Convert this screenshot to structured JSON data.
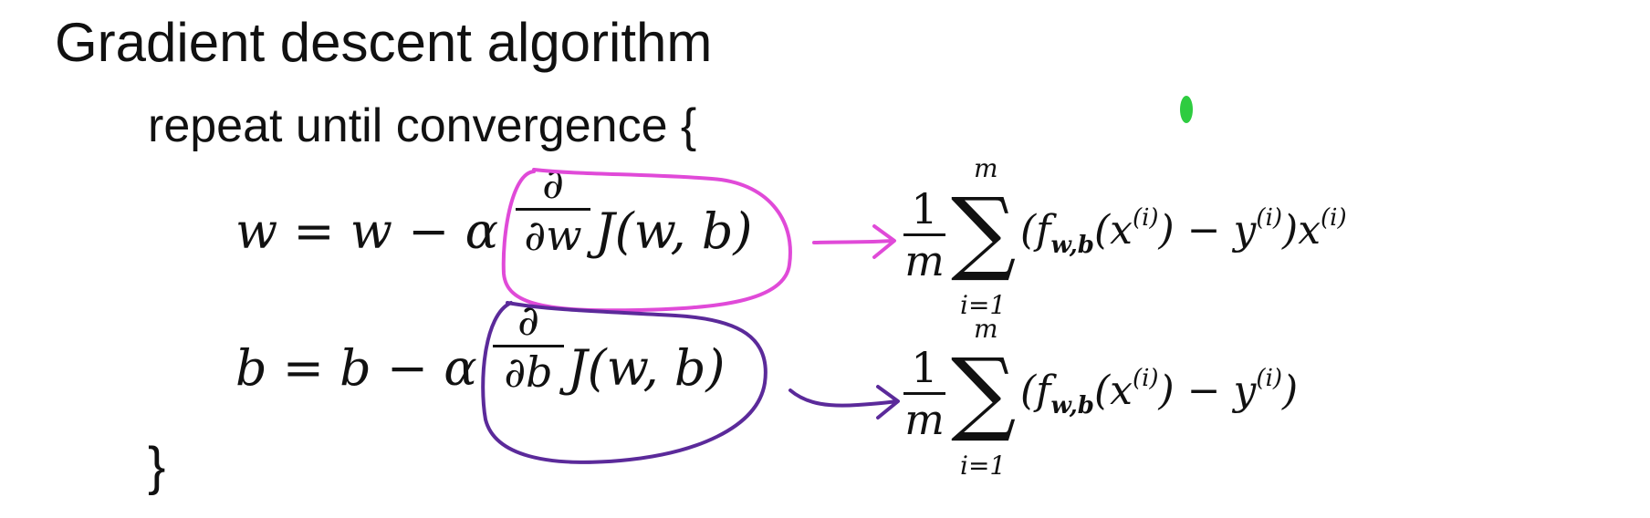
{
  "slide": {
    "title": "Gradient descent algorithm",
    "repeat_label": "repeat until convergence {",
    "close_brace": "}"
  },
  "equation_w": {
    "lhs": "w = w − α",
    "deriv_num": "∂",
    "deriv_den": "∂w",
    "cost": "J(w, b)"
  },
  "equation_b": {
    "lhs": "b = b − α",
    "deriv_num": "∂",
    "deriv_den": "∂b",
    "cost": "J(w, b)"
  },
  "derivative_w": {
    "frac_num": "1",
    "frac_den": "m",
    "sum_upper": "m",
    "sum_lower": "i=1",
    "f": "(f",
    "f_sub": "w,b",
    "expr_a": "(x",
    "sup_i": "(i)",
    "expr_b": ") − y",
    "expr_c": ")x"
  },
  "derivative_b": {
    "frac_num": "1",
    "frac_den": "m",
    "sum_upper": "m",
    "sum_lower": "i=1",
    "f": "(f",
    "f_sub": "w,b",
    "expr_a": "(x",
    "sup_i": "(i)",
    "expr_b": ") − y",
    "expr_c": ")"
  },
  "colors": {
    "text": "#111111",
    "highlight_w": "#e04ad8",
    "highlight_b": "#5b2a9a",
    "dot": "#2ecc40"
  }
}
